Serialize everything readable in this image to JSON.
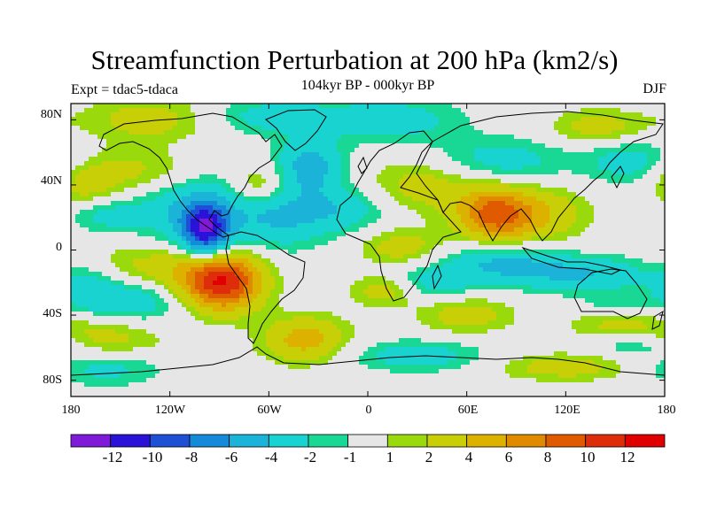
{
  "title": "Streamfunction Perturbation at 200 hPa (km2/s)",
  "subtitle": "104kyr BP - 000kyr BP",
  "experiment": "Expt = tdac5-tdaca",
  "season": "DJF",
  "chart_data": {
    "type": "heatmap",
    "projection": "cylindrical-equidistant",
    "xlim": [
      -180,
      180
    ],
    "ylim": [
      -90,
      90
    ],
    "y_ticks": [
      {
        "value": 80,
        "label": "80N"
      },
      {
        "value": 40,
        "label": "40N"
      },
      {
        "value": 0,
        "label": "0"
      },
      {
        "value": -40,
        "label": "40S"
      },
      {
        "value": -80,
        "label": "80S"
      }
    ],
    "x_ticks": [
      {
        "value": -180,
        "label": "180"
      },
      {
        "value": -120,
        "label": "120W"
      },
      {
        "value": -60,
        "label": "60W"
      },
      {
        "value": 0,
        "label": "0"
      },
      {
        "value": 60,
        "label": "60E"
      },
      {
        "value": 120,
        "label": "120E"
      },
      {
        "value": 180,
        "label": "180"
      }
    ],
    "colorbar": {
      "colors": [
        "#7f1bd8",
        "#2a12d8",
        "#1d50d4",
        "#148ad9",
        "#1cb3d9",
        "#18d3d0",
        "#19d895",
        "#e6e6e6",
        "#9ad90c",
        "#c9cf06",
        "#dcb100",
        "#e08a00",
        "#e05a00",
        "#de2d0a",
        "#e00000"
      ],
      "boundaries": [
        -12,
        -10,
        -8,
        -6,
        -4,
        -2,
        -1,
        1,
        2,
        4,
        6,
        8,
        10,
        12
      ],
      "tick_labels": [
        "-12",
        "-10",
        "-8",
        "-6",
        "-4",
        "-2",
        "-1",
        "1",
        "2",
        "4",
        "6",
        "8",
        "10",
        "12"
      ]
    },
    "anomalies": [
      {
        "lon": -98,
        "lat": 12,
        "value": -10,
        "sx": 10,
        "sy": 12
      },
      {
        "lon": -110,
        "lat": 25,
        "value": -4,
        "sx": 22,
        "sy": 20
      },
      {
        "lon": -88,
        "lat": -20,
        "value": 11,
        "sx": 16,
        "sy": 12
      },
      {
        "lon": -120,
        "lat": -12,
        "value": 4,
        "sx": 30,
        "sy": 12
      },
      {
        "lon": -140,
        "lat": -30,
        "value": -4,
        "sx": 20,
        "sy": 10
      },
      {
        "lon": -170,
        "lat": -25,
        "value": -3,
        "sx": 14,
        "sy": 10
      },
      {
        "lon": -160,
        "lat": 22,
        "value": -3,
        "sx": 16,
        "sy": 8
      },
      {
        "lon": -130,
        "lat": 48,
        "value": 3,
        "sx": 25,
        "sy": 10
      },
      {
        "lon": -170,
        "lat": 40,
        "value": 3,
        "sx": 14,
        "sy": 12
      },
      {
        "lon": -130,
        "lat": 80,
        "value": 3,
        "sx": 30,
        "sy": 10
      },
      {
        "lon": -35,
        "lat": 52,
        "value": -5,
        "sx": 14,
        "sy": 12
      },
      {
        "lon": -55,
        "lat": 20,
        "value": -4,
        "sx": 22,
        "sy": 14
      },
      {
        "lon": -15,
        "lat": 25,
        "value": -3,
        "sx": 20,
        "sy": 10
      },
      {
        "lon": -60,
        "lat": 82,
        "value": -3,
        "sx": 30,
        "sy": 8
      },
      {
        "lon": -65,
        "lat": 40,
        "value": 3,
        "sx": 12,
        "sy": 8
      },
      {
        "lon": 15,
        "lat": 80,
        "value": -3,
        "sx": 30,
        "sy": 10
      },
      {
        "lon": 35,
        "lat": 40,
        "value": 3,
        "sx": 25,
        "sy": 12
      },
      {
        "lon": 78,
        "lat": 22,
        "value": 9,
        "sx": 16,
        "sy": 11
      },
      {
        "lon": 110,
        "lat": 22,
        "value": 3,
        "sx": 18,
        "sy": 12
      },
      {
        "lon": 80,
        "lat": 55,
        "value": -3,
        "sx": 30,
        "sy": 10
      },
      {
        "lon": 160,
        "lat": 55,
        "value": -3,
        "sx": 20,
        "sy": 10
      },
      {
        "lon": 140,
        "lat": 75,
        "value": 3,
        "sx": 20,
        "sy": 8
      },
      {
        "lon": 20,
        "lat": 2,
        "value": 3,
        "sx": 18,
        "sy": 8
      },
      {
        "lon": 10,
        "lat": -25,
        "value": 3,
        "sx": 14,
        "sy": 7
      },
      {
        "lon": 40,
        "lat": -20,
        "value": -3,
        "sx": 18,
        "sy": 7
      },
      {
        "lon": 80,
        "lat": -8,
        "value": -4,
        "sx": 25,
        "sy": 8
      },
      {
        "lon": 130,
        "lat": -15,
        "value": -4,
        "sx": 30,
        "sy": 8
      },
      {
        "lon": 60,
        "lat": -40,
        "value": 3,
        "sx": 20,
        "sy": 8
      },
      {
        "lon": 150,
        "lat": -45,
        "value": 3,
        "sx": 20,
        "sy": 10
      },
      {
        "lon": -38,
        "lat": -55,
        "value": 5,
        "sx": 18,
        "sy": 10
      },
      {
        "lon": -160,
        "lat": -55,
        "value": 3,
        "sx": 25,
        "sy": 10
      },
      {
        "lon": -160,
        "lat": -72,
        "value": -3,
        "sx": 25,
        "sy": 8
      },
      {
        "lon": 30,
        "lat": -65,
        "value": -3,
        "sx": 30,
        "sy": 7
      },
      {
        "lon": 120,
        "lat": -72,
        "value": 3,
        "sx": 30,
        "sy": 6
      },
      {
        "lon": 150,
        "lat": -35,
        "value": -3,
        "sx": 16,
        "sy": 6
      },
      {
        "lon": 160,
        "lat": -58,
        "value": -3,
        "sx": 20,
        "sy": 6
      }
    ]
  }
}
